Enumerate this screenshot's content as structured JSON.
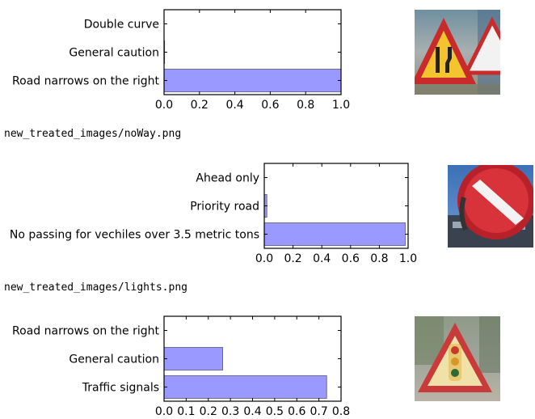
{
  "filenames": [
    "new_treated_images/noWay.png",
    "new_treated_images/lights.png"
  ],
  "chart_data": [
    {
      "type": "bar",
      "orientation": "horizontal",
      "categories": [
        "Road narrows on the right",
        "General caution",
        "Double curve"
      ],
      "values": [
        1.0,
        0.003,
        0.0
      ],
      "xlim": [
        0,
        1.0
      ],
      "xticks": [
        "0.0",
        "0.2",
        "0.4",
        "0.6",
        "0.8",
        "1.0"
      ],
      "bar_color": "#9999ff"
    },
    {
      "type": "bar",
      "orientation": "horizontal",
      "categories": [
        "No passing for vechiles over 3.5 metric tons",
        "Priority road",
        "Ahead only"
      ],
      "values": [
        0.98,
        0.018,
        0.0
      ],
      "xlim": [
        0,
        1.0
      ],
      "xticks": [
        "0.0",
        "0.2",
        "0.4",
        "0.6",
        "0.8",
        "1.0"
      ],
      "bar_color": "#9999ff"
    },
    {
      "type": "bar",
      "orientation": "horizontal",
      "categories": [
        "Traffic signals",
        "General caution",
        "Road narrows on the right"
      ],
      "values": [
        0.735,
        0.265,
        0.0
      ],
      "xlim": [
        0,
        0.8
      ],
      "xticks": [
        "0.0",
        "0.1",
        "0.2",
        "0.3",
        "0.4",
        "0.5",
        "0.6",
        "0.7",
        "0.8"
      ],
      "bar_color": "#9999ff"
    }
  ],
  "thumbnails": [
    {
      "icon": "road-narrows-warning-sign-icon"
    },
    {
      "icon": "no-entry-sign-icon"
    },
    {
      "icon": "traffic-signals-warning-sign-icon"
    }
  ]
}
